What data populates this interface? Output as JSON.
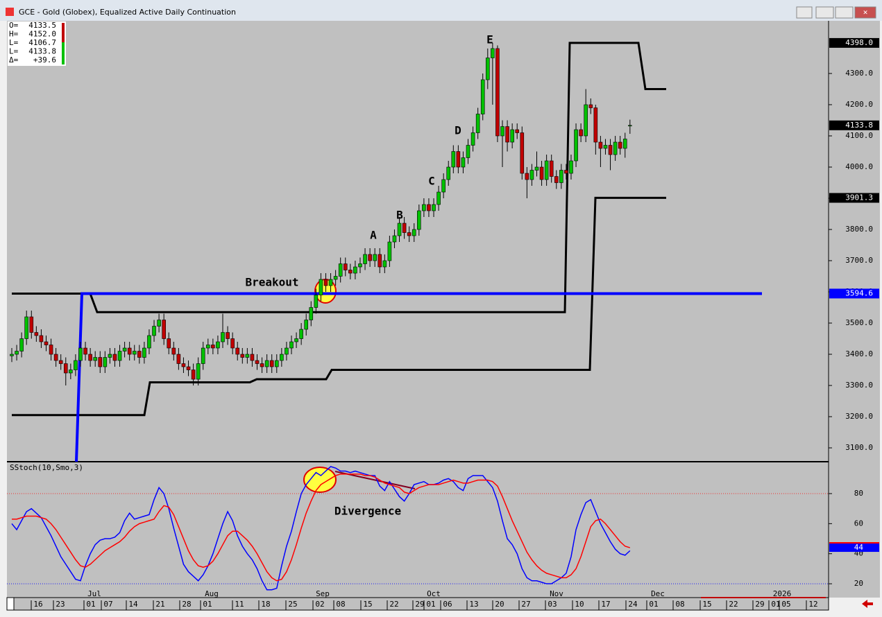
{
  "window": {
    "title": "GCE - Gold (Globex), Equalized Active Daily Continuation"
  },
  "ohlc_box": [
    {
      "label": "O=",
      "value": "4133.5"
    },
    {
      "label": "H=",
      "value": "4152.0"
    },
    {
      "label": "L=",
      "value": "4106.7"
    },
    {
      "label": "L=",
      "value": "4133.8"
    },
    {
      "label": "Δ=",
      "value": "+39.6"
    }
  ],
  "chart_data": [
    {
      "type": "candlestick",
      "up_color": "#00c000",
      "down_color": "#c00000",
      "open": [
        3395,
        3400,
        3410,
        3450,
        3520,
        3470,
        3460,
        3440,
        3430,
        3400,
        3380,
        3370,
        3340,
        3350,
        3380,
        3420,
        3400,
        3380,
        3390,
        3360,
        3390,
        3400,
        3380,
        3410,
        3420,
        3400,
        3410,
        3390,
        3420,
        3460,
        3490,
        3510,
        3450,
        3420,
        3400,
        3370,
        3360,
        3350,
        3320,
        3370,
        3420,
        3430,
        3420,
        3440,
        3470,
        3450,
        3420,
        3400,
        3390,
        3400,
        3380,
        3370,
        3360,
        3380,
        3360,
        3380,
        3400,
        3420,
        3440,
        3450,
        3480,
        3510,
        3550,
        3590,
        3640,
        3620,
        3640,
        3650,
        3690,
        3670,
        3660,
        3680,
        3690,
        3720,
        3700,
        3720,
        3680,
        3700,
        3760,
        3780,
        3820,
        3790,
        3780,
        3800,
        3860,
        3880,
        3860,
        3880,
        3920,
        3960,
        4000,
        4050,
        4000,
        4030,
        4070,
        4110,
        4170,
        4280,
        4350,
        4380,
        4100,
        4130,
        4080,
        4120,
        4110,
        3980,
        3960,
        3990,
        4000,
        3960,
        4020,
        3970,
        3950,
        3990,
        3980,
        4020,
        4120,
        4100,
        4200,
        4190,
        4080,
        4060,
        4070,
        4040,
        4080,
        4060,
        4133.5
      ],
      "high": [
        3420,
        3430,
        3470,
        3540,
        3540,
        3490,
        3480,
        3460,
        3450,
        3420,
        3400,
        3390,
        3370,
        3400,
        3440,
        3440,
        3420,
        3410,
        3410,
        3410,
        3420,
        3420,
        3430,
        3440,
        3440,
        3430,
        3430,
        3440,
        3480,
        3510,
        3530,
        3530,
        3470,
        3440,
        3420,
        3390,
        3380,
        3370,
        3390,
        3440,
        3450,
        3450,
        3460,
        3530,
        3490,
        3470,
        3440,
        3420,
        3420,
        3420,
        3400,
        3390,
        3400,
        3400,
        3400,
        3420,
        3440,
        3460,
        3470,
        3500,
        3530,
        3570,
        3610,
        3660,
        3660,
        3660,
        3670,
        3710,
        3710,
        3690,
        3700,
        3710,
        3740,
        3740,
        3740,
        3740,
        3720,
        3780,
        3800,
        3840,
        3840,
        3810,
        3820,
        3880,
        3900,
        3900,
        3900,
        3940,
        3980,
        4020,
        4070,
        4070,
        4050,
        4090,
        4130,
        4190,
        4300,
        4380,
        4398,
        4390,
        4150,
        4150,
        4140,
        4140,
        4130,
        4000,
        4010,
        4050,
        4020,
        4040,
        4040,
        3990,
        4010,
        4010,
        4040,
        4140,
        4140,
        4250,
        4220,
        4200,
        4100,
        4090,
        4090,
        4100,
        4100,
        4110,
        4152
      ],
      "low": [
        3375,
        3380,
        3390,
        3430,
        3450,
        3440,
        3420,
        3410,
        3380,
        3360,
        3350,
        3300,
        3320,
        3330,
        3360,
        3380,
        3360,
        3360,
        3340,
        3340,
        3370,
        3360,
        3360,
        3390,
        3380,
        3380,
        3370,
        3370,
        3400,
        3440,
        3470,
        3430,
        3400,
        3380,
        3350,
        3340,
        3330,
        3300,
        3300,
        3350,
        3400,
        3400,
        3400,
        3420,
        3430,
        3400,
        3380,
        3370,
        3370,
        3360,
        3350,
        3340,
        3340,
        3340,
        3340,
        3360,
        3380,
        3400,
        3420,
        3430,
        3460,
        3490,
        3530,
        3570,
        3600,
        3600,
        3620,
        3630,
        3650,
        3640,
        3640,
        3660,
        3670,
        3680,
        3680,
        3660,
        3660,
        3680,
        3740,
        3760,
        3770,
        3760,
        3760,
        3780,
        3840,
        3840,
        3840,
        3860,
        3900,
        3940,
        3980,
        3980,
        3980,
        4010,
        4050,
        4090,
        4150,
        4250,
        4200,
        4080,
        4000,
        4050,
        4060,
        4090,
        3960,
        3900,
        3940,
        3970,
        3940,
        3940,
        3950,
        3930,
        3930,
        3960,
        3960,
        4000,
        4080,
        4080,
        4170,
        4040,
        4000,
        4040,
        3990,
        4020,
        4040,
        4030,
        4106.7
      ],
      "close": [
        3400,
        3410,
        3450,
        3520,
        3470,
        3460,
        3440,
        3430,
        3400,
        3380,
        3370,
        3340,
        3350,
        3380,
        3420,
        3400,
        3380,
        3390,
        3360,
        3390,
        3400,
        3380,
        3410,
        3420,
        3400,
        3410,
        3390,
        3420,
        3460,
        3490,
        3510,
        3450,
        3420,
        3400,
        3370,
        3360,
        3350,
        3320,
        3370,
        3420,
        3430,
        3420,
        3440,
        3470,
        3450,
        3420,
        3400,
        3390,
        3400,
        3380,
        3370,
        3360,
        3380,
        3360,
        3380,
        3400,
        3420,
        3440,
        3450,
        3480,
        3510,
        3550,
        3590,
        3640,
        3620,
        3640,
        3650,
        3690,
        3670,
        3660,
        3680,
        3690,
        3720,
        3700,
        3720,
        3680,
        3700,
        3760,
        3780,
        3820,
        3790,
        3780,
        3800,
        3860,
        3880,
        3860,
        3880,
        3920,
        3960,
        4000,
        4050,
        4000,
        4030,
        4070,
        4110,
        4170,
        4280,
        4350,
        4380,
        4100,
        4130,
        4080,
        4120,
        4110,
        3980,
        3960,
        3990,
        4000,
        3960,
        4020,
        3970,
        3950,
        3990,
        3980,
        4020,
        4120,
        4100,
        4200,
        4190,
        4080,
        4060,
        4070,
        4040,
        4080,
        4060,
        4090,
        4133.8
      ],
      "ylim": [
        3055.6,
        4468.9
      ],
      "yticks": [
        {
          "value": 3100,
          "label": "3100.0"
        },
        {
          "value": 3200,
          "label": "3200.0"
        },
        {
          "value": 3300,
          "label": "3300.0"
        },
        {
          "value": 3400,
          "label": "3400.0"
        },
        {
          "value": 3500,
          "label": "3500.0"
        },
        {
          "value": 3600,
          "label": "3600.0"
        },
        {
          "value": 3700,
          "label": "3700.0"
        },
        {
          "value": 3800,
          "label": "3800.0"
        },
        {
          "value": 3900,
          "label": "3900.0"
        },
        {
          "value": 4000,
          "label": "4000.0"
        },
        {
          "value": 4100,
          "label": "4100.0"
        },
        {
          "value": 4200,
          "label": "4200.0"
        },
        {
          "value": 4300,
          "label": "4300.0"
        }
      ],
      "price_markers": [
        {
          "value": 4398,
          "label": "4398.0"
        },
        {
          "value": 4133.8,
          "label": "4133.8"
        },
        {
          "value": 3901.3,
          "label": "3901.3"
        },
        {
          "value": 3594.6,
          "label": "3594.6"
        }
      ],
      "upper_channel": [
        3594.6,
        3535,
        4398,
        4250
      ],
      "lower_channel": [
        3205,
        3310,
        3320,
        3350,
        3901.3
      ],
      "breakout_level": 3594.6,
      "channel_color": "#000000",
      "breakout_color": "#0000ff",
      "annotations": [
        "Breakout",
        "A",
        "B",
        "C",
        "D",
        "E"
      ],
      "xtick_labels": [
        "16",
        "23",
        "01",
        "07",
        "14",
        "21",
        "28",
        "01",
        "11",
        "18",
        "25",
        "02",
        "08",
        "15",
        "22",
        "29",
        "01",
        "06",
        "13",
        "20",
        "27",
        "03",
        "10",
        "17",
        "24",
        "01",
        "08",
        "15",
        "22",
        "29",
        "01",
        "05",
        "12"
      ],
      "month_labels": [
        "Jul",
        "Aug",
        "Sep",
        "Oct",
        "Nov",
        "Dec",
        "2026"
      ]
    },
    {
      "type": "line",
      "title": "SStoch(10,Smo,3)",
      "annotation": "Divergence",
      "series": [
        {
          "color": "#0000ff",
          "values": [
            60,
            56,
            62,
            68,
            70,
            67,
            64,
            58,
            52,
            45,
            38,
            33,
            28,
            23,
            22,
            32,
            40,
            46,
            49,
            50,
            50,
            51,
            54,
            62,
            67,
            63,
            64,
            65,
            66,
            76,
            84,
            80,
            70,
            57,
            45,
            33,
            28,
            25,
            22,
            26,
            32,
            40,
            50,
            60,
            68,
            62,
            52,
            45,
            40,
            36,
            30,
            22,
            16,
            16,
            17,
            32,
            45,
            55,
            68,
            80,
            86,
            90,
            94,
            92,
            95,
            98,
            97,
            95,
            95,
            94,
            95,
            94,
            93,
            92,
            92,
            85,
            82,
            88,
            83,
            78,
            75,
            80,
            86,
            87,
            88,
            86,
            86,
            87,
            89,
            90,
            88,
            84,
            82,
            90,
            92,
            92,
            92,
            88,
            84,
            75,
            62,
            50,
            46,
            40,
            30,
            24,
            22,
            22,
            21,
            20,
            20,
            22,
            24,
            27,
            38,
            56,
            66,
            74,
            76,
            68,
            60,
            54,
            48,
            43,
            40,
            39,
            42
          ]
        },
        {
          "color": "#ff0000",
          "values": [
            63,
            63,
            64,
            65,
            65,
            65,
            64,
            63,
            60,
            56,
            51,
            46,
            41,
            36,
            32,
            31,
            33,
            36,
            39,
            42,
            44,
            46,
            48,
            51,
            55,
            58,
            60,
            61,
            62,
            63,
            68,
            72,
            71,
            66,
            58,
            50,
            42,
            36,
            32,
            31,
            32,
            35,
            40,
            46,
            52,
            55,
            55,
            52,
            49,
            45,
            40,
            34,
            28,
            24,
            22,
            23,
            28,
            36,
            46,
            57,
            67,
            75,
            82,
            86,
            88,
            90,
            92,
            93,
            93,
            93,
            93,
            93,
            92,
            92,
            91,
            89,
            87,
            86,
            85,
            84,
            81,
            80,
            82,
            84,
            85,
            86,
            86,
            86,
            87,
            88,
            89,
            88,
            87,
            87,
            88,
            89,
            89,
            89,
            88,
            85,
            78,
            70,
            62,
            55,
            48,
            41,
            36,
            32,
            29,
            27,
            26,
            25,
            24,
            24,
            26,
            30,
            38,
            48,
            58,
            62,
            63,
            60,
            56,
            52,
            48,
            45,
            44
          ]
        }
      ],
      "ylim": [
        10.8,
        100.3
      ],
      "yticks": [
        20,
        40,
        60,
        80
      ],
      "levels": [
        {
          "value": 80,
          "color": "#ff0000"
        },
        {
          "value": 20,
          "color": "#0000ff"
        }
      ],
      "last_marker": 44
    }
  ]
}
